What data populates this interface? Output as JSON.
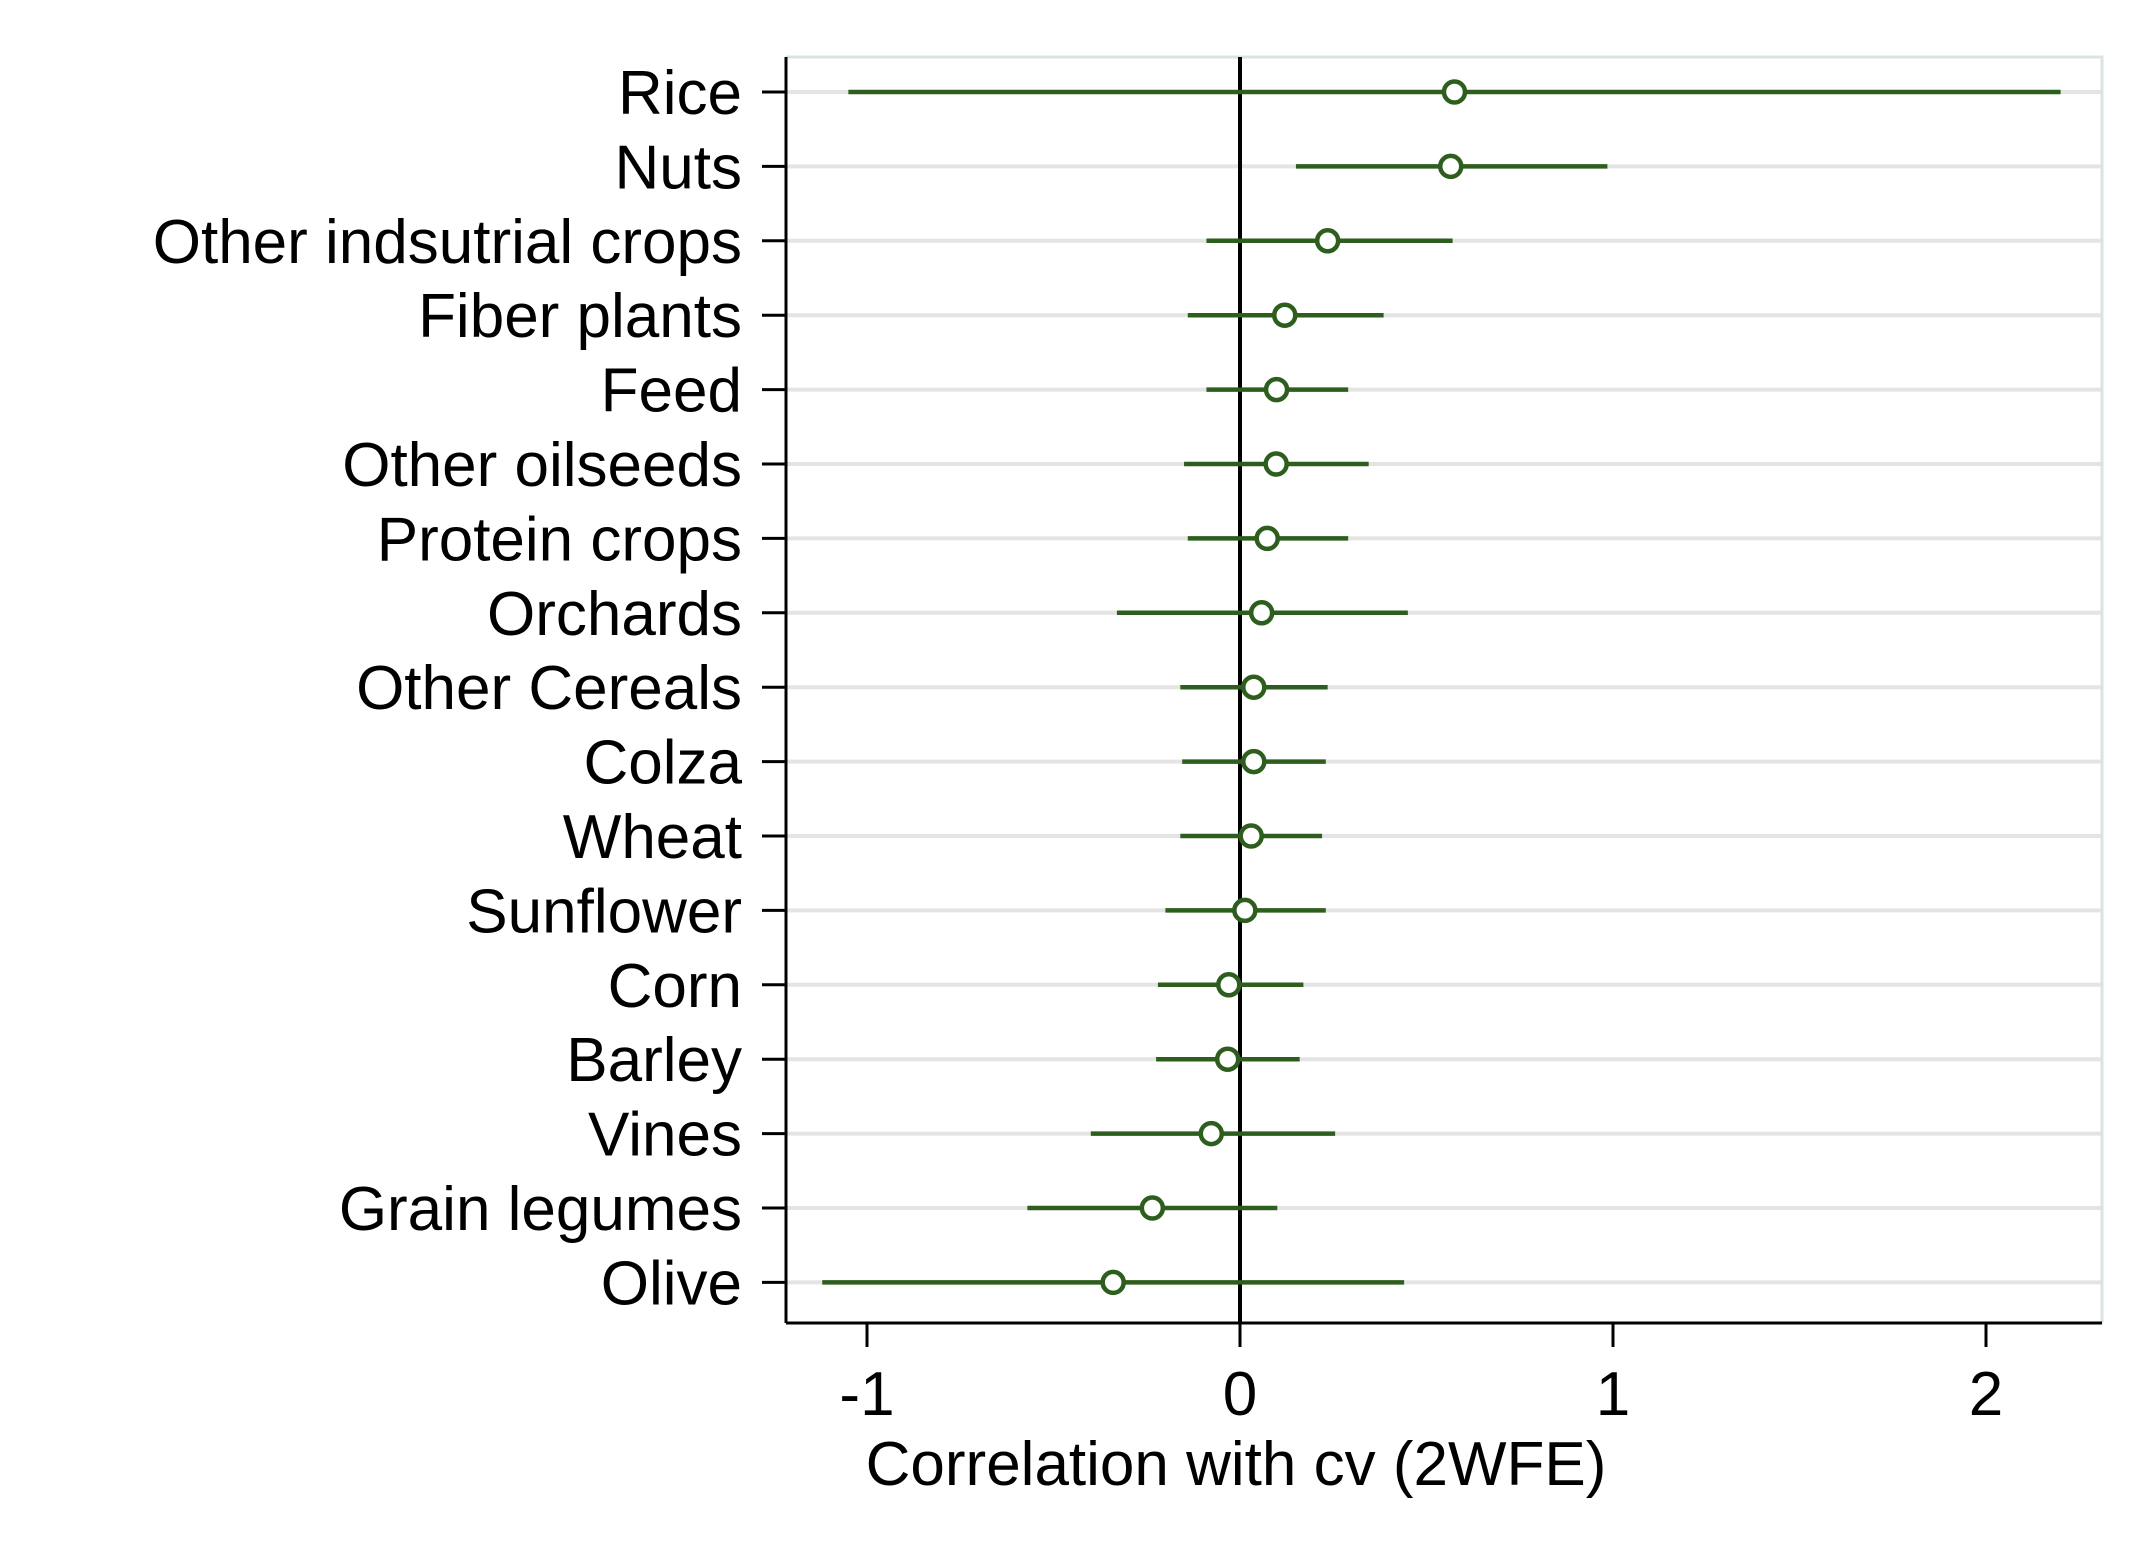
{
  "chart_data": {
    "type": "scatter",
    "subtype": "coefficient-plot-horizontal",
    "title": "",
    "xlabel": "Correlation with cv (2WFE)",
    "ylabel": "",
    "xlim": [
      -1.25,
      2.3
    ],
    "xticks": [
      -1,
      0,
      1,
      2
    ],
    "xtick_labels": [
      "-1",
      "0",
      "1",
      "2"
    ],
    "reference_line_x": 0,
    "grid": "horizontal",
    "legend": "none",
    "colors": {
      "series": "#2e5e1e",
      "grid": "#e4e4e4",
      "axis": "#000000",
      "frame": "#d9e3e5"
    },
    "categories": [
      "Rice",
      "Nuts",
      "Other indsutrial crops",
      "Fiber plants",
      "Feed",
      "Other oilseeds",
      "Protein crops",
      "Orchards",
      "Other Cereals",
      "Colza",
      "Wheat",
      "Sunflower",
      "Corn",
      "Barley",
      "Vines",
      "Grain legumes",
      "Olive"
    ],
    "series": [
      {
        "estimate": [
          0.575,
          0.565,
          0.235,
          0.12,
          0.098,
          0.097,
          0.073,
          0.058,
          0.037,
          0.037,
          0.03,
          0.013,
          -0.03,
          -0.033,
          -0.077,
          -0.235,
          -0.34
        ],
        "ci_low": [
          -1.05,
          0.15,
          -0.09,
          -0.14,
          -0.09,
          -0.15,
          -0.14,
          -0.33,
          -0.16,
          -0.155,
          -0.16,
          -0.2,
          -0.22,
          -0.225,
          -0.4,
          -0.57,
          -1.12
        ],
        "ci_high": [
          2.2,
          0.985,
          0.57,
          0.385,
          0.29,
          0.345,
          0.29,
          0.45,
          0.235,
          0.23,
          0.22,
          0.23,
          0.17,
          0.16,
          0.255,
          0.1,
          0.44
        ]
      }
    ]
  }
}
